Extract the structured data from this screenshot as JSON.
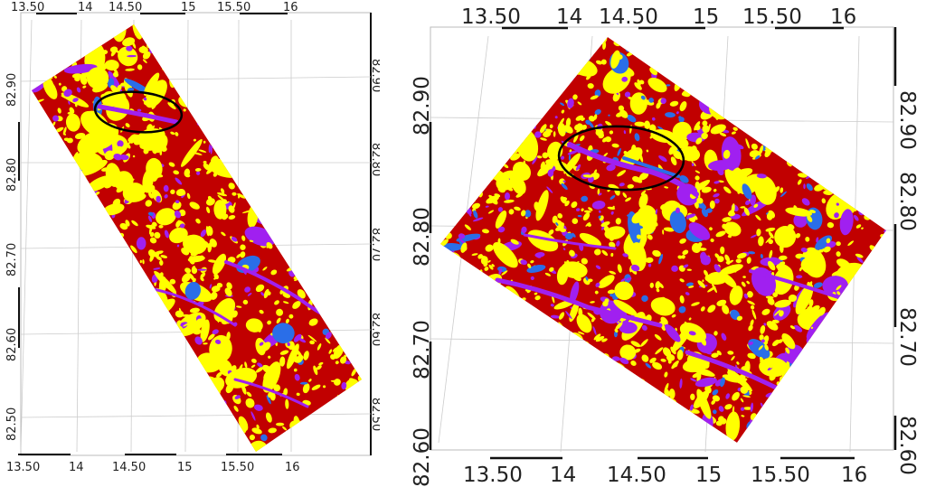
{
  "left": {
    "x_ticks": [
      "13.50",
      "14",
      "14.50",
      "15",
      "15.50",
      "16"
    ],
    "y_ticks_left": [
      "82.90",
      "82.80",
      "82.70",
      "82.60",
      "82.50"
    ],
    "y_ticks_right": [
      "82.90",
      "82.80",
      "82.70",
      "82.60",
      "82.50"
    ]
  },
  "right": {
    "x_ticks": [
      "13.50",
      "14",
      "14.50",
      "15",
      "15.50",
      "16"
    ],
    "y_ticks": [
      "82.90",
      "82.80",
      "82.70",
      "82.60"
    ]
  },
  "colors": {
    "base": "#c10000",
    "yellow": "#ffff00",
    "purple": "#a020f0",
    "blue": "#2a6ee8",
    "grid": "#cccccc",
    "ellipse": "#000000"
  }
}
